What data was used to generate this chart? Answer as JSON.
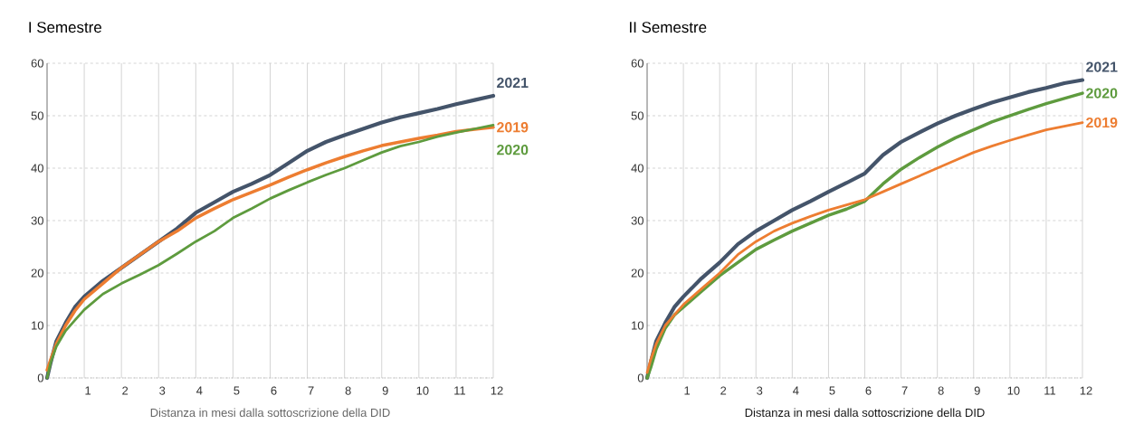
{
  "chart_data": [
    {
      "type": "line",
      "title": "I Semestre",
      "xlabel": "Distanza in mesi dalla sottoscrizione della DID",
      "grid": true,
      "legend": false,
      "line_style": "solid",
      "x": [
        0,
        0.1,
        0.25,
        0.5,
        0.75,
        1,
        1.5,
        2,
        2.5,
        3,
        3.5,
        4,
        4.5,
        5,
        5.5,
        6,
        6.5,
        7,
        7.5,
        8,
        8.5,
        9,
        9.5,
        10,
        10.5,
        11,
        11.5,
        12
      ],
      "xlim": [
        0,
        12
      ],
      "ylim": [
        0,
        60
      ],
      "xticks": [
        1,
        2,
        3,
        4,
        5,
        6,
        7,
        8,
        9,
        10,
        11,
        12
      ],
      "yticks": [
        0,
        10,
        20,
        30,
        40,
        50,
        60
      ],
      "series": [
        {
          "name": "2021",
          "color": "#44546a",
          "values": [
            0,
            3,
            7,
            10.5,
            13.5,
            15.5,
            18.5,
            21,
            23.5,
            26,
            28.5,
            31.5,
            33.5,
            35.5,
            37,
            38.7,
            41,
            43.3,
            45,
            46.3,
            47.5,
            48.7,
            49.7,
            50.5,
            51.3,
            52.2,
            53,
            53.8
          ]
        },
        {
          "name": "2019",
          "color": "#ed7d31",
          "values": [
            1.5,
            3.5,
            6.5,
            10,
            12.8,
            15,
            18,
            21,
            23.5,
            26,
            28,
            30.5,
            32.3,
            34,
            35.4,
            36.8,
            38.3,
            39.7,
            41,
            42.2,
            43.3,
            44.3,
            45,
            45.7,
            46.3,
            47,
            47.4,
            47.8
          ]
        },
        {
          "name": "2020",
          "color": "#5e9b3e",
          "values": [
            0,
            3,
            6,
            9,
            11,
            13,
            16,
            18,
            19.7,
            21.5,
            23.7,
            26,
            28,
            30.5,
            32.3,
            34.2,
            35.8,
            37.3,
            38.7,
            40,
            41.5,
            43,
            44.2,
            45,
            46,
            46.8,
            47.5,
            48.2
          ]
        }
      ]
    },
    {
      "type": "line",
      "title": "II Semestre",
      "xlabel": "Distanza in mesi dalla sottoscrizione della DID",
      "grid": true,
      "legend": false,
      "line_style": "solid",
      "x": [
        0,
        0.1,
        0.25,
        0.5,
        0.75,
        1,
        1.5,
        2,
        2.5,
        3,
        3.5,
        4,
        4.5,
        5,
        5.5,
        6,
        6.5,
        7,
        7.5,
        8,
        8.5,
        9,
        9.5,
        10,
        10.5,
        11,
        11.5,
        12
      ],
      "xlim": [
        0,
        12
      ],
      "ylim": [
        0,
        60
      ],
      "xticks": [
        1,
        2,
        3,
        4,
        5,
        6,
        7,
        8,
        9,
        10,
        11,
        12
      ],
      "yticks": [
        0,
        10,
        20,
        30,
        40,
        50,
        60
      ],
      "series": [
        {
          "name": "2021",
          "color": "#44546a",
          "values": [
            0,
            3,
            7,
            10.5,
            13.5,
            15.5,
            19,
            22,
            25.5,
            28,
            30,
            32,
            33.7,
            35.5,
            37.2,
            39,
            42.5,
            45,
            46.8,
            48.5,
            50,
            51.3,
            52.5,
            53.5,
            54.5,
            55.3,
            56.2,
            56.8
          ]
        },
        {
          "name": "2020",
          "color": "#5e9b3e",
          "values": [
            0,
            2,
            5.5,
            9.5,
            12,
            13.5,
            16.5,
            19.5,
            22,
            24.5,
            26.3,
            28,
            29.5,
            31,
            32.2,
            33.7,
            37,
            39.8,
            42,
            44,
            45.8,
            47.3,
            48.8,
            50,
            51.2,
            52.3,
            53.3,
            54.3
          ]
        },
        {
          "name": "2019",
          "color": "#ed7d31",
          "values": [
            1,
            3.5,
            6.5,
            10,
            12,
            14,
            17,
            20,
            23.5,
            26,
            28,
            29.5,
            30.8,
            32,
            33,
            34,
            35.5,
            37,
            38.5,
            40,
            41.5,
            43,
            44.2,
            45.3,
            46.3,
            47.3,
            48,
            48.7
          ]
        }
      ]
    }
  ]
}
